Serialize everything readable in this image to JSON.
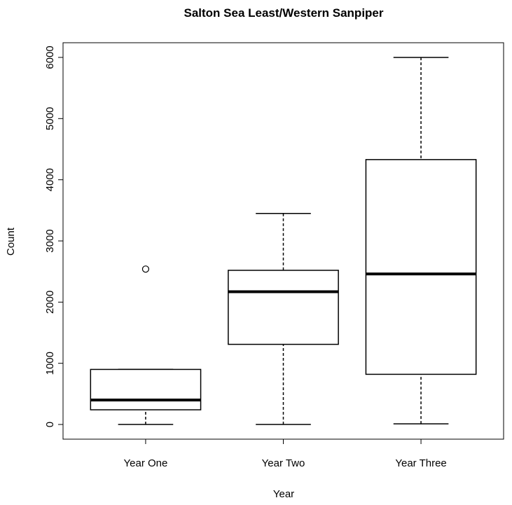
{
  "chart_data": {
    "type": "box",
    "title": "Salton Sea Least/Western Sanpiper",
    "xlabel": "Year",
    "ylabel": "Count",
    "categories": [
      "Year One",
      "Year Two",
      "Year Three"
    ],
    "boxes": [
      {
        "min": 0,
        "q1": 240,
        "median": 400,
        "q3": 900,
        "max": 900,
        "outliers": [
          2540
        ]
      },
      {
        "min": 0,
        "q1": 1310,
        "median": 2170,
        "q3": 2520,
        "max": 3450,
        "outliers": []
      },
      {
        "min": 10,
        "q1": 820,
        "median": 2460,
        "q3": 4330,
        "max": 6000,
        "outliers": []
      }
    ],
    "color": "#000000",
    "ylim": [
      -240,
      6240
    ],
    "yticks": [
      0,
      1000,
      2000,
      3000,
      4000,
      5000,
      6000
    ]
  }
}
